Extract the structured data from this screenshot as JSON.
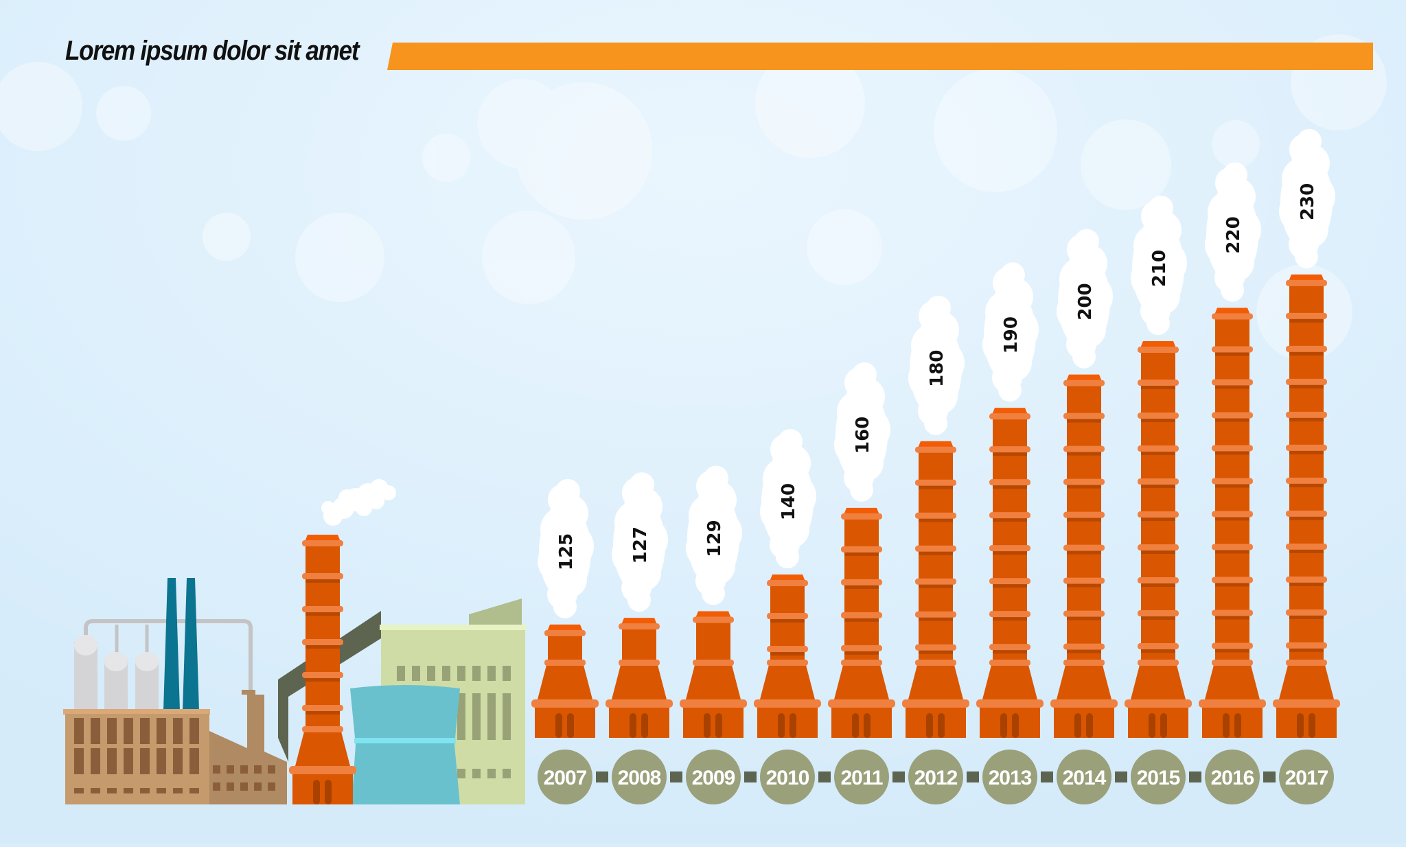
{
  "title": "Lorem ipsum dolor sit amet",
  "colors": {
    "background": "#d8edfb",
    "title_bar": "#f7941d",
    "chimney": "#db5600",
    "chimney_ring": "#f08040",
    "year_circle": "#9aa07a",
    "connector": "#5d6450",
    "smoke": "#ffffff"
  },
  "chart_data": {
    "type": "bar",
    "style": "chimney pictograph with smoke-cloud data labels",
    "title": "Lorem ipsum dolor sit amet",
    "categories": [
      "2007",
      "2008",
      "2009",
      "2010",
      "2011",
      "2012",
      "2013",
      "2014",
      "2015",
      "2016",
      "2017"
    ],
    "values": [
      125,
      127,
      129,
      140,
      160,
      180,
      190,
      200,
      210,
      220,
      230
    ],
    "labels": [
      "125",
      "127",
      "129",
      "140",
      "160",
      "180",
      "190",
      "200",
      "210",
      "220",
      "230"
    ],
    "grid": false,
    "axes_visible": false
  }
}
